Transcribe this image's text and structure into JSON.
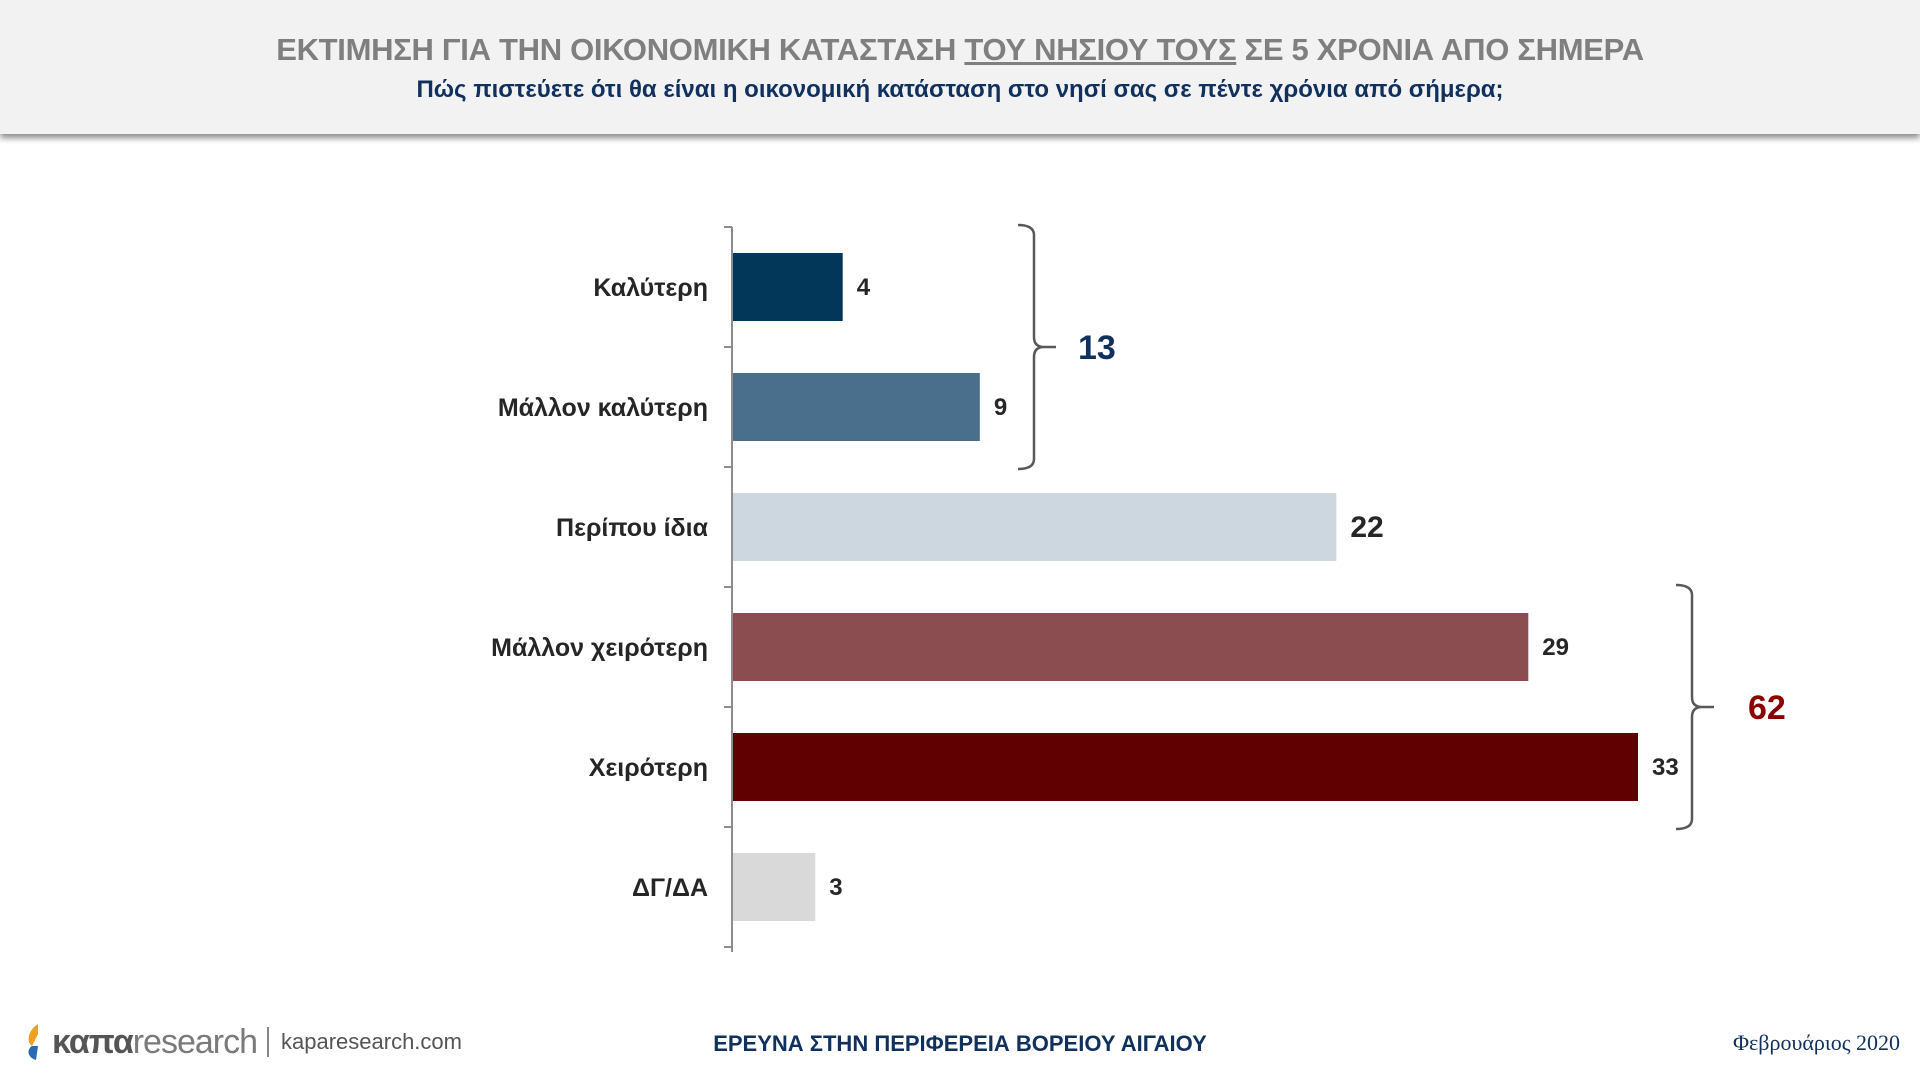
{
  "header": {
    "title_part1": "ΕΚΤΙΜΗΣΗ ΓΙΑ ΤΗΝ ΟΙΚΟΝΟΜΙΚΗ ΚΑΤΑΣΤΑΣΗ ",
    "title_underlined": "ΤΟΥ ΝΗΣΙΟΥ ΤΟΥΣ",
    "title_part2": " ΣΕ 5 ΧΡΟΝΙΑ ΑΠΟ ΣΗΜΕΡΑ",
    "subtitle": "Πώς πιστεύετε ότι θα είναι η οικονομική κατάσταση στο νησί σας σε πέντε χρόνια από σήμερα;"
  },
  "chart_data": {
    "type": "bar",
    "orientation": "horizontal",
    "categories": [
      "Καλύτερη",
      "Μάλλον καλύτερη",
      "Περίπου ίδια",
      "Μάλλον χειρότερη",
      "Χειρότερη",
      "ΔΓ/ΔΑ"
    ],
    "values": [
      4,
      9,
      22,
      29,
      33,
      3
    ],
    "colors": [
      "#02375a",
      "#4a6f8d",
      "#ccd7e0",
      "#8c4d50",
      "#610000",
      "#d9d9d9"
    ],
    "xlim": [
      0,
      33
    ],
    "grid": false,
    "groups": [
      {
        "categories": [
          "Καλύτερη",
          "Μάλλον καλύτερη"
        ],
        "total": "13",
        "color": "#10305e"
      },
      {
        "categories": [
          "Μάλλον χειρότερη",
          "Χειρότερη"
        ],
        "total": "62",
        "color": "#8b0000"
      }
    ]
  },
  "footer": {
    "logo_kapa": "καπα",
    "logo_research": "research",
    "logo_url": "kaparesearch.com",
    "center_text": "ΕΡΕΥΝΑ ΣΤΗΝ ΠΕΡΙΦΕΡΕΙΑ ΒΟΡΕΙΟΥ ΑΙΓΑΙΟΥ",
    "date": "Φεβρουάριος 2020"
  }
}
